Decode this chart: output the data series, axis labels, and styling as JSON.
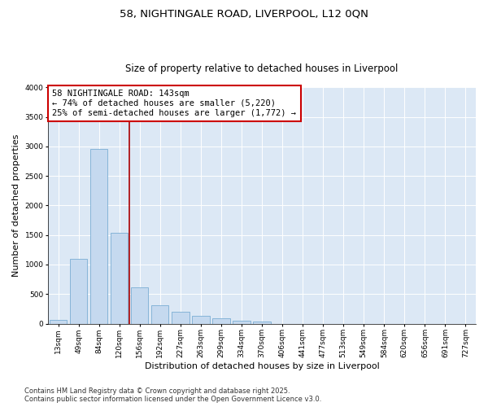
{
  "title": "58, NIGHTINGALE ROAD, LIVERPOOL, L12 0QN",
  "subtitle": "Size of property relative to detached houses in Liverpool",
  "xlabel": "Distribution of detached houses by size in Liverpool",
  "ylabel": "Number of detached properties",
  "categories": [
    "13sqm",
    "49sqm",
    "84sqm",
    "120sqm",
    "156sqm",
    "192sqm",
    "227sqm",
    "263sqm",
    "299sqm",
    "334sqm",
    "370sqm",
    "406sqm",
    "441sqm",
    "477sqm",
    "513sqm",
    "549sqm",
    "584sqm",
    "620sqm",
    "656sqm",
    "691sqm",
    "727sqm"
  ],
  "values": [
    65,
    1090,
    2960,
    1540,
    620,
    310,
    200,
    130,
    90,
    55,
    30,
    0,
    0,
    0,
    0,
    0,
    0,
    0,
    0,
    0,
    0
  ],
  "bar_color": "#c5d9ef",
  "bar_edge_color": "#7aadd4",
  "vline_color": "#aa0000",
  "vline_x_index": 3.5,
  "annotation_text": "58 NIGHTINGALE ROAD: 143sqm\n← 74% of detached houses are smaller (5,220)\n25% of semi-detached houses are larger (1,772) →",
  "annotation_box_color": "#cc0000",
  "annotation_bg": "#ffffff",
  "ylim": [
    0,
    4000
  ],
  "yticks": [
    0,
    500,
    1000,
    1500,
    2000,
    2500,
    3000,
    3500,
    4000
  ],
  "bg_color": "#dce8f5",
  "footer_line1": "Contains HM Land Registry data © Crown copyright and database right 2025.",
  "footer_line2": "Contains public sector information licensed under the Open Government Licence v3.0.",
  "title_fontsize": 9.5,
  "subtitle_fontsize": 8.5,
  "axis_label_fontsize": 8,
  "tick_fontsize": 6.5,
  "annotation_fontsize": 7.5,
  "footer_fontsize": 6
}
